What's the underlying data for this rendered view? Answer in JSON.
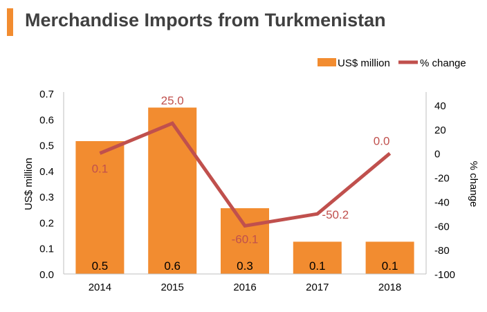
{
  "title": "Merchandise Imports from Turkmenistan",
  "colors": {
    "accent": "#f28c30",
    "bar": "#f28c30",
    "line": "#c0504d",
    "axis_text": "#000000",
    "title": "#404040"
  },
  "chart_data": {
    "type": "bar",
    "categories": [
      "2014",
      "2015",
      "2016",
      "2017",
      "2018"
    ],
    "series": [
      {
        "name": "US$ million",
        "type": "bar",
        "axis": "left",
        "values": [
          0.515,
          0.645,
          0.255,
          0.125,
          0.125
        ],
        "labels": [
          "0.5",
          "0.6",
          "0.3",
          "0.1",
          "0.1"
        ]
      },
      {
        "name": "% change",
        "type": "line",
        "axis": "right",
        "values": [
          0.1,
          25.0,
          -60.1,
          -50.2,
          0.0
        ],
        "labels": [
          "0.1",
          "25.0",
          "-60.1",
          "-50.2",
          "0.0"
        ]
      }
    ],
    "ylabel": "US$ million",
    "y2label": "% change",
    "ylim": [
      0,
      0.7
    ],
    "yticks": [
      "0.0",
      "0.1",
      "0.2",
      "0.3",
      "0.4",
      "0.5",
      "0.6",
      "0.7"
    ],
    "y2lim": [
      -100,
      50
    ],
    "y2ticks": [
      "40",
      "20",
      "0",
      "-20",
      "-40",
      "-60",
      "-80",
      "-100"
    ],
    "legend": [
      "US$ million",
      "% change"
    ],
    "legend_position": "top-right",
    "grid": false
  }
}
